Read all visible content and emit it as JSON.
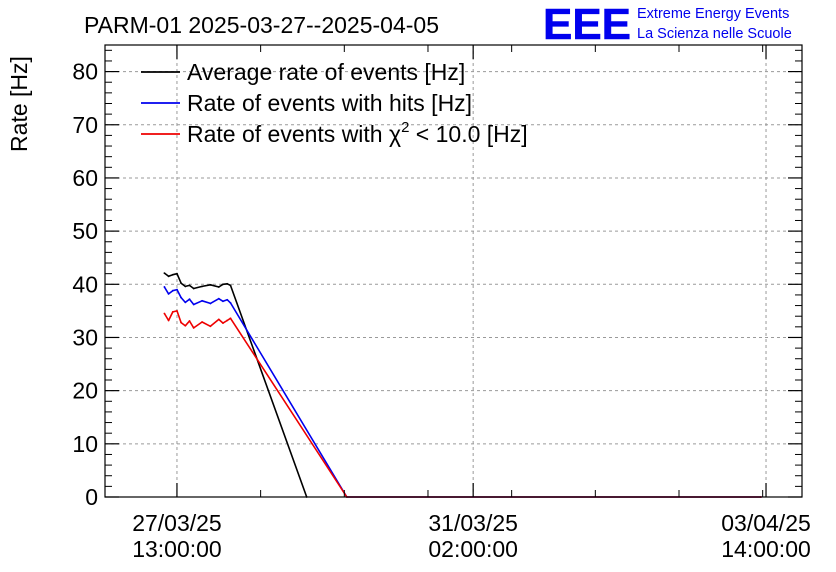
{
  "chart_data": {
    "type": "line",
    "title": "PARM-01 2025-03-27--2025-04-05",
    "ylabel": "Rate [Hz]",
    "xlabel": "",
    "ylim": [
      0,
      85
    ],
    "yticks": [
      0,
      10,
      20,
      30,
      40,
      50,
      60,
      70,
      80
    ],
    "grid": true,
    "legend_position": "top-left",
    "x_ticks": [
      {
        "day": 0.0,
        "date": "27/03/25",
        "time": "13:00:00"
      },
      {
        "day": 3.54,
        "date": "31/03/25",
        "time": "02:00:00"
      },
      {
        "day": 7.04,
        "date": "03/04/25",
        "time": "14:00:00"
      }
    ],
    "x_unit_note": "x values are days after 27/03/25 13:00:00",
    "xlim": [
      -0.86,
      7.47
    ],
    "series": [
      {
        "name": "Average rate of events [Hz]",
        "color": "#000000",
        "x": [
          -0.15,
          -0.1,
          -0.05,
          0.0,
          0.05,
          0.1,
          0.15,
          0.2,
          0.3,
          0.4,
          0.5,
          0.55,
          0.6,
          0.64,
          1.55
        ],
        "y": [
          42.1,
          41.5,
          41.8,
          42.0,
          40.2,
          39.6,
          39.8,
          39.2,
          39.6,
          39.9,
          39.5,
          40.0,
          40.1,
          39.8,
          0
        ]
      },
      {
        "name": "Rate of events with hits [Hz]",
        "color": "#0000ee",
        "x": [
          -0.15,
          -0.1,
          -0.05,
          0.0,
          0.05,
          0.1,
          0.15,
          0.2,
          0.3,
          0.4,
          0.5,
          0.55,
          0.6,
          0.64,
          2.03,
          6.98
        ],
        "y": [
          39.5,
          38.2,
          38.8,
          39.0,
          37.5,
          36.6,
          37.2,
          36.2,
          36.9,
          36.4,
          37.3,
          36.8,
          37.1,
          36.5,
          0,
          0
        ]
      },
      {
        "name": "Rate of events with χ² < 10.0 [Hz]",
        "color": "#ee0000",
        "x": [
          -0.15,
          -0.1,
          -0.05,
          0.0,
          0.05,
          0.1,
          0.15,
          0.2,
          0.3,
          0.4,
          0.5,
          0.55,
          0.6,
          0.64,
          2.03,
          6.98
        ],
        "y": [
          34.5,
          33.2,
          34.8,
          35.0,
          32.8,
          32.2,
          33.1,
          31.8,
          32.9,
          32.1,
          33.4,
          32.7,
          33.2,
          33.6,
          0,
          0
        ]
      }
    ],
    "legend": [
      {
        "text": "Average rate of events [Hz]",
        "color": "#000000"
      },
      {
        "text": "Rate of events with hits [Hz]",
        "color": "#0000ee"
      },
      {
        "pre": "Rate of events with ",
        "chi": "χ",
        "sup": "2",
        "post": " < 10.0 [Hz]",
        "color": "#ee0000"
      }
    ]
  },
  "logo": {
    "mark": "EEE",
    "line1": "Extreme Energy Events",
    "line2": "La Scienza nelle Scuole",
    "color": "#0000ee"
  }
}
